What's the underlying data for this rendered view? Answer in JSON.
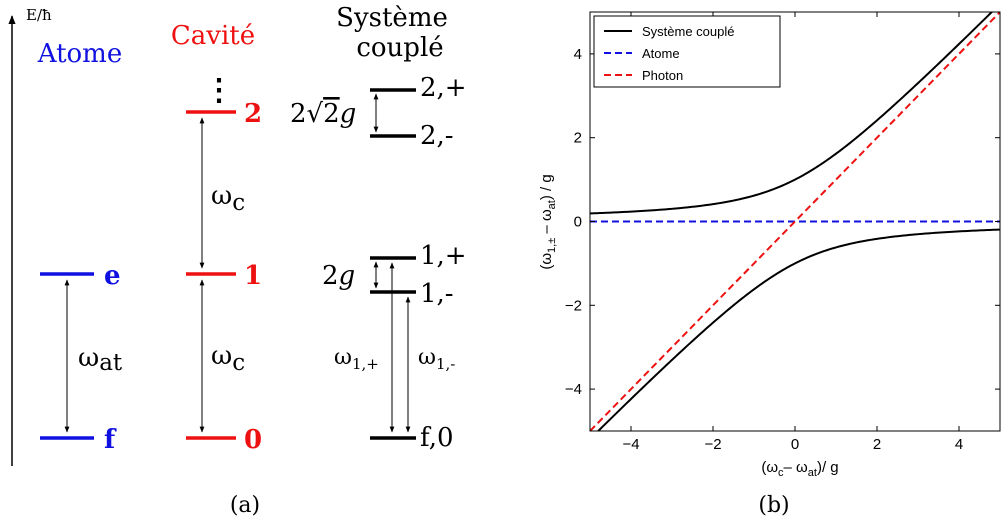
{
  "colors": {
    "atom": "#1010e0",
    "cavity": "#ee1111",
    "coupled": "#000000"
  },
  "panel_a": {
    "label": "(a)",
    "energy_axis_label": "E/ħ",
    "atom": {
      "title": "Atome",
      "levels": [
        {
          "name": "e"
        },
        {
          "name": "f"
        }
      ],
      "transition": {
        "base": "ω",
        "sub": "at"
      }
    },
    "cavity": {
      "title": "Cavité",
      "dots": "⋮",
      "levels": [
        {
          "name": "2"
        },
        {
          "name": "1"
        },
        {
          "name": "0"
        }
      ],
      "transition_upper": {
        "base": "ω",
        "sub": "c"
      },
      "transition_lower": {
        "base": "ω",
        "sub": "c"
      }
    },
    "coupled": {
      "title_line1": "Système",
      "title_line2": "couplé",
      "levels": [
        {
          "name": "2,+"
        },
        {
          "name": "2,-"
        },
        {
          "name": "1,+"
        },
        {
          "name": "1,-"
        },
        {
          "name": "f,0"
        }
      ],
      "splitting_2": {
        "prefix": "2",
        "root": "√",
        "radicand": "2",
        "g": "g"
      },
      "splitting_1": {
        "prefix": "2",
        "g": "g"
      },
      "transition_plus": {
        "base": "ω",
        "sub": "1,+"
      },
      "transition_minus": {
        "base": "ω",
        "sub": "1,-"
      }
    }
  },
  "panel_b": {
    "label": "(b)",
    "chart_data": {
      "type": "line",
      "xlabel": "(ω_c– ω_at)/ g",
      "ylabel": "(ω_1,± – ω_at) / g",
      "xlim": [
        -5,
        5
      ],
      "ylim": [
        -5,
        5
      ],
      "x_ticks": [
        -4,
        -2,
        0,
        2,
        4
      ],
      "y_ticks": [
        -4,
        -2,
        0,
        2,
        4
      ],
      "x_tick_labels": [
        "−4",
        "−2",
        "0",
        "2",
        "4"
      ],
      "y_tick_labels": [
        "−4",
        "−2",
        "0",
        "2",
        "4"
      ],
      "grid": false,
      "legend_position": "top-left",
      "series": [
        {
          "name": "Système couplé",
          "style": "solid",
          "color": "#000000",
          "formula": "0.5*(x ± sqrt(x^2+4))",
          "branches": 2
        },
        {
          "name": "Atome",
          "style": "dashed",
          "color": "#1010e0",
          "formula": "y = 0"
        },
        {
          "name": "Photon",
          "style": "dashed",
          "color": "#ee1111",
          "formula": "y = x"
        }
      ]
    }
  }
}
